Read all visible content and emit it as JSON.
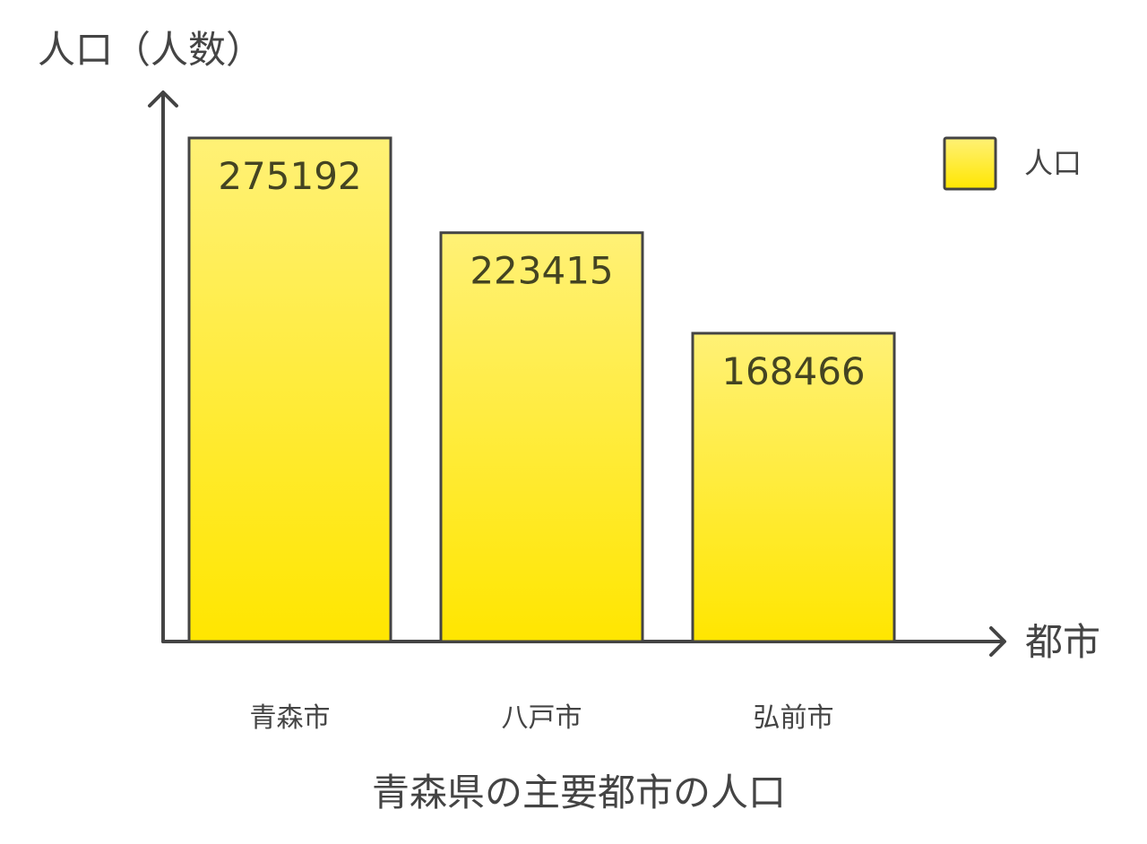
{
  "chart_data": {
    "type": "bar",
    "title": "青森県の主要都市の人口",
    "xlabel": "都市",
    "ylabel": "人口（人数）",
    "categories": [
      "青森市",
      "八戸市",
      "弘前市"
    ],
    "series": [
      {
        "name": "人口",
        "values": [
          275192,
          223415,
          168466
        ]
      }
    ],
    "data_labels": [
      "275192",
      "223415",
      "168466"
    ],
    "ylim": [
      0,
      275192
    ],
    "grid": false,
    "legend_position": "top-right",
    "bar_color_top": "#fff176",
    "bar_color_bottom": "#ffe600",
    "stroke_color": "#444444",
    "label_color": "#444422"
  },
  "legend": {
    "label": "人口"
  }
}
